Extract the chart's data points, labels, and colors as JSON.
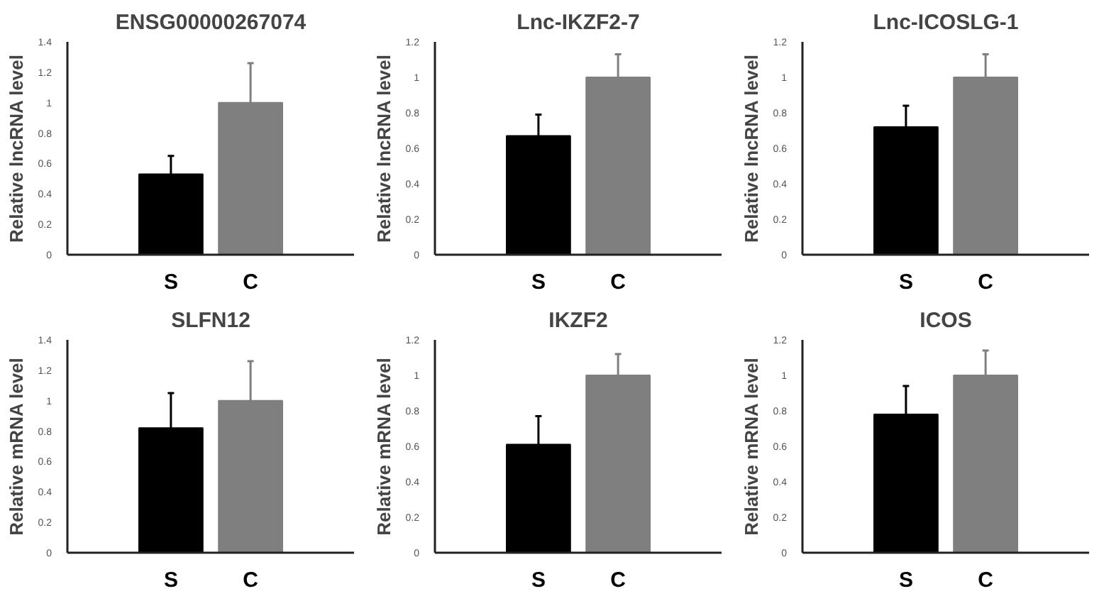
{
  "chart_data": [
    {
      "type": "bar",
      "title": "ENSG00000267074",
      "ylabel": "Relative lncRNA level",
      "categories": [
        "S",
        "C"
      ],
      "values": [
        0.53,
        1.0
      ],
      "colors": [
        "#000000",
        "#7f7f7f"
      ],
      "errors": [
        [
          0.53,
          0.65
        ],
        [
          1.0,
          1.26
        ]
      ],
      "ylim": [
        0,
        1.4
      ],
      "yticks": [
        0,
        0.2,
        0.4,
        0.6,
        0.8,
        1,
        1.2,
        1.4
      ],
      "grid": false,
      "legend": false
    },
    {
      "type": "bar",
      "title": "Lnc-IKZF2-7",
      "ylabel": "Relative lncRNA level",
      "categories": [
        "S",
        "C"
      ],
      "values": [
        0.67,
        1.0
      ],
      "colors": [
        "#000000",
        "#7f7f7f"
      ],
      "errors": [
        [
          0.67,
          0.79
        ],
        [
          1.0,
          1.13
        ]
      ],
      "ylim": [
        0,
        1.2
      ],
      "yticks": [
        0,
        0.2,
        0.4,
        0.6,
        0.8,
        1,
        1.2
      ],
      "grid": false,
      "legend": false
    },
    {
      "type": "bar",
      "title": "Lnc-ICOSLG-1",
      "ylabel": "Relative lncRNA level",
      "categories": [
        "S",
        "C"
      ],
      "values": [
        0.72,
        1.0
      ],
      "colors": [
        "#000000",
        "#7f7f7f"
      ],
      "errors": [
        [
          0.72,
          0.84
        ],
        [
          1.0,
          1.13
        ]
      ],
      "ylim": [
        0,
        1.2
      ],
      "yticks": [
        0,
        0.2,
        0.4,
        0.6,
        0.8,
        1,
        1.2
      ],
      "grid": false,
      "legend": false
    },
    {
      "type": "bar",
      "title": "SLFN12",
      "ylabel": "Relative mRNA level",
      "categories": [
        "S",
        "C"
      ],
      "values": [
        0.82,
        1.0
      ],
      "colors": [
        "#000000",
        "#7f7f7f"
      ],
      "errors": [
        [
          0.82,
          1.05
        ],
        [
          1.0,
          1.26
        ]
      ],
      "ylim": [
        0,
        1.4
      ],
      "yticks": [
        0,
        0.2,
        0.4,
        0.6,
        0.8,
        1,
        1.2,
        1.4
      ],
      "grid": false,
      "legend": false
    },
    {
      "type": "bar",
      "title": "IKZF2",
      "ylabel": "Relative mRNA level",
      "categories": [
        "S",
        "C"
      ],
      "values": [
        0.61,
        1.0
      ],
      "colors": [
        "#000000",
        "#7f7f7f"
      ],
      "errors": [
        [
          0.61,
          0.77
        ],
        [
          1.0,
          1.12
        ]
      ],
      "ylim": [
        0,
        1.2
      ],
      "yticks": [
        0,
        0.2,
        0.4,
        0.6,
        0.8,
        1,
        1.2
      ],
      "grid": false,
      "legend": false
    },
    {
      "type": "bar",
      "title": "ICOS",
      "ylabel": "Relative mRNA level",
      "categories": [
        "S",
        "C"
      ],
      "values": [
        0.78,
        1.0
      ],
      "colors": [
        "#000000",
        "#7f7f7f"
      ],
      "errors": [
        [
          0.78,
          0.94
        ],
        [
          1.0,
          1.14
        ]
      ],
      "ylim": [
        0,
        1.2
      ],
      "yticks": [
        0,
        0.2,
        0.4,
        0.6,
        0.8,
        1,
        1.2
      ],
      "grid": false,
      "legend": false
    }
  ]
}
